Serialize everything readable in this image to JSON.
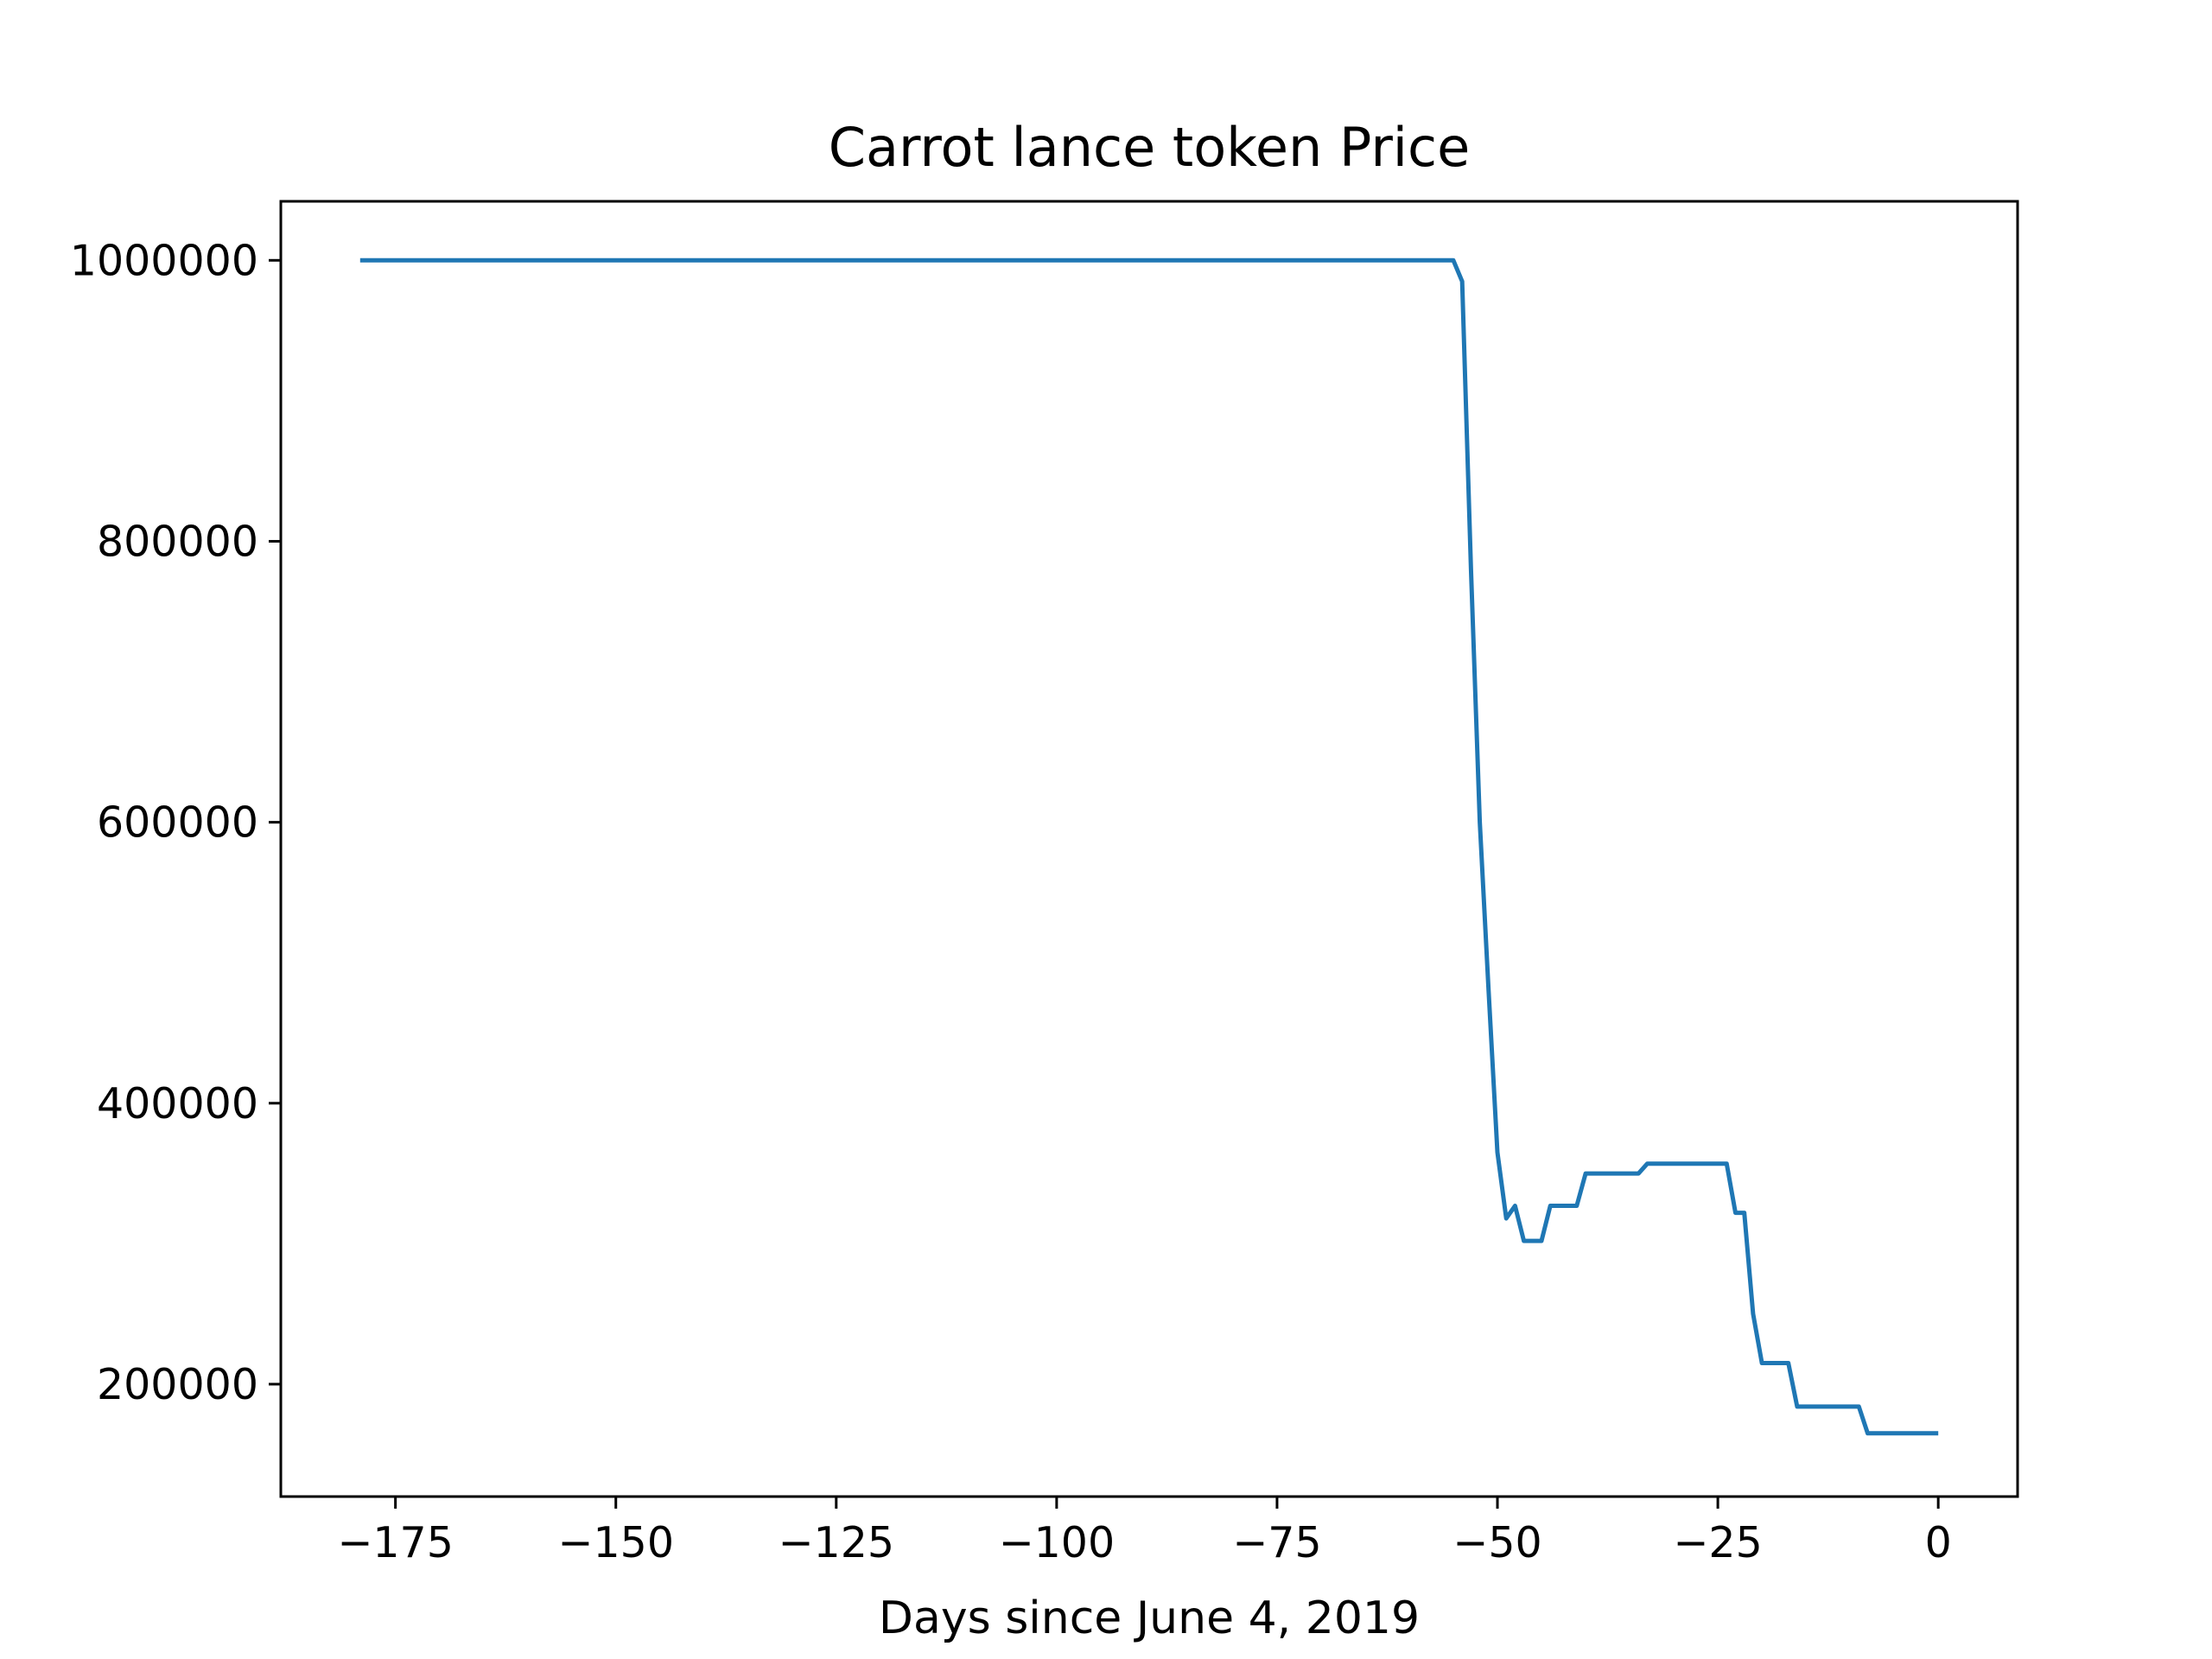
{
  "chart_data": {
    "type": "line",
    "title": "Carrot lance token Price",
    "xlabel": "Days since June 4, 2019",
    "ylabel": "",
    "xlim": [
      -188,
      9
    ],
    "ylim": [
      120000,
      1042000
    ],
    "xticks": [
      -175,
      -150,
      -125,
      -100,
      -75,
      -50,
      -25,
      0
    ],
    "xtick_labels": [
      "−175",
      "−150",
      "−125",
      "−100",
      "−75",
      "−50",
      "−25",
      "0"
    ],
    "yticks": [
      200000,
      400000,
      600000,
      800000,
      1000000
    ],
    "ytick_labels": [
      "200000",
      "400000",
      "600000",
      "800000",
      "1000000"
    ],
    "grid": false,
    "legend": "none",
    "series": [
      {
        "color": "#1f77b4",
        "x": [
          -179,
          -55,
          -54,
          -53,
          -52,
          -51,
          -50,
          -49,
          -48,
          -47,
          -46,
          -45,
          -44,
          -43,
          -42,
          -41,
          -40,
          -39,
          -38,
          -37,
          -36,
          -35,
          -34,
          -33,
          -32,
          -31,
          -30,
          -29,
          -28,
          -27,
          -26,
          -25,
          -24,
          -23,
          -22,
          -21,
          -20,
          -19,
          -18,
          -17,
          -16,
          -15,
          -14,
          -13,
          -12,
          -11,
          -10,
          -9,
          -8,
          -7,
          -6,
          -5,
          -4,
          -3,
          -2,
          -1,
          0
        ],
        "y": [
          1000000,
          1000000,
          985000,
          780000,
          600000,
          480000,
          365000,
          318000,
          327000,
          302000,
          302000,
          302000,
          327000,
          327000,
          327000,
          327000,
          350000,
          350000,
          350000,
          350000,
          350000,
          350000,
          350000,
          357000,
          357000,
          357000,
          357000,
          357000,
          357000,
          357000,
          357000,
          357000,
          357000,
          322000,
          322000,
          250000,
          215000,
          215000,
          215000,
          215000,
          184000,
          184000,
          184000,
          184000,
          184000,
          184000,
          184000,
          184000,
          165000,
          165000,
          165000,
          165000,
          165000,
          165000,
          165000,
          165000,
          165000
        ]
      }
    ]
  }
}
